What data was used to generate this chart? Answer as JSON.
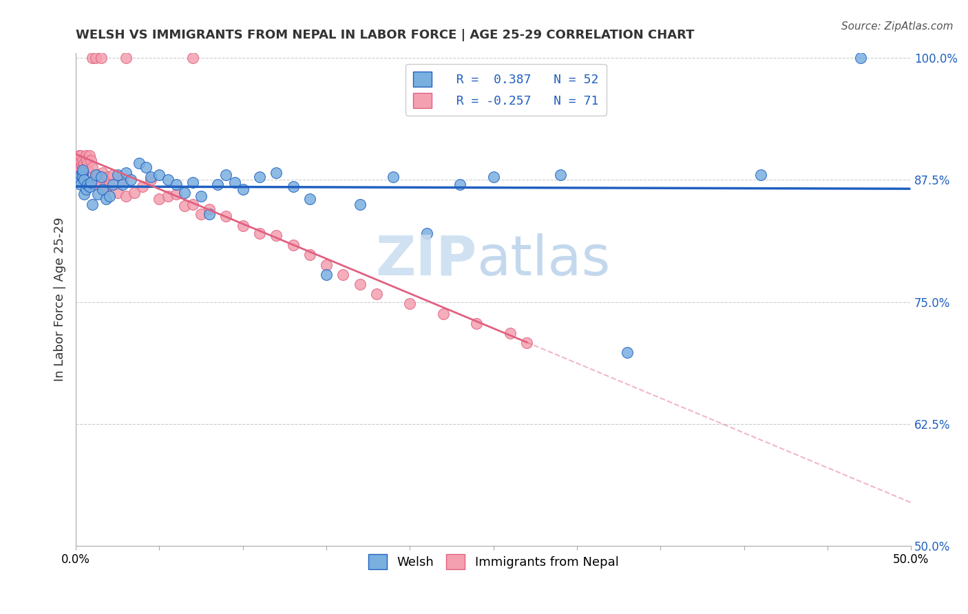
{
  "title": "WELSH VS IMMIGRANTS FROM NEPAL IN LABOR FORCE | AGE 25-29 CORRELATION CHART",
  "source_text": "Source: ZipAtlas.com",
  "ylabel": "In Labor Force | Age 25-29",
  "xlim": [
    0.0,
    0.5
  ],
  "ylim": [
    0.5,
    1.005
  ],
  "yticks": [
    0.5,
    0.625,
    0.75,
    0.875,
    1.0
  ],
  "ytick_labels": [
    "50.0%",
    "62.5%",
    "75.0%",
    "87.5%",
    "100.0%"
  ],
  "xticks": [
    0.0,
    0.05,
    0.1,
    0.15,
    0.2,
    0.25,
    0.3,
    0.35,
    0.4,
    0.45,
    0.5
  ],
  "xtick_labels": [
    "0.0%",
    "",
    "",
    "",
    "",
    "",
    "",
    "",
    "",
    "",
    "50.0%"
  ],
  "welsh_R": 0.387,
  "welsh_N": 52,
  "nepal_R": -0.257,
  "nepal_N": 71,
  "welsh_color": "#7ab0e0",
  "nepal_color": "#f4a0b0",
  "welsh_line_color": "#2060c0",
  "nepal_line_color": "#e06080",
  "background_color": "#ffffff",
  "welsh_x": [
    0.002,
    0.003,
    0.003,
    0.004,
    0.004,
    0.004,
    0.005,
    0.005,
    0.006,
    0.007,
    0.008,
    0.009,
    0.01,
    0.012,
    0.013,
    0.015,
    0.016,
    0.018,
    0.02,
    0.022,
    0.025,
    0.028,
    0.03,
    0.033,
    0.038,
    0.042,
    0.045,
    0.05,
    0.055,
    0.06,
    0.065,
    0.07,
    0.075,
    0.08,
    0.085,
    0.09,
    0.095,
    0.1,
    0.11,
    0.12,
    0.13,
    0.14,
    0.15,
    0.17,
    0.19,
    0.21,
    0.23,
    0.25,
    0.29,
    0.33,
    0.41,
    0.47
  ],
  "welsh_y": [
    0.875,
    0.88,
    0.87,
    0.882,
    0.878,
    0.885,
    0.86,
    0.875,
    0.865,
    0.87,
    0.868,
    0.872,
    0.85,
    0.88,
    0.86,
    0.878,
    0.865,
    0.855,
    0.858,
    0.87,
    0.88,
    0.87,
    0.882,
    0.875,
    0.892,
    0.888,
    0.878,
    0.88,
    0.875,
    0.87,
    0.862,
    0.872,
    0.858,
    0.84,
    0.87,
    0.88,
    0.872,
    0.865,
    0.878,
    0.882,
    0.868,
    0.855,
    0.778,
    0.85,
    0.878,
    0.82,
    0.87,
    0.878,
    0.88,
    0.698,
    0.88,
    1.0
  ],
  "nepal_x": [
    0.001,
    0.001,
    0.001,
    0.002,
    0.002,
    0.002,
    0.002,
    0.003,
    0.003,
    0.003,
    0.003,
    0.003,
    0.004,
    0.004,
    0.004,
    0.004,
    0.005,
    0.005,
    0.005,
    0.006,
    0.006,
    0.007,
    0.007,
    0.007,
    0.008,
    0.008,
    0.009,
    0.01,
    0.011,
    0.012,
    0.013,
    0.014,
    0.015,
    0.016,
    0.018,
    0.019,
    0.02,
    0.022,
    0.025,
    0.028,
    0.03,
    0.035,
    0.04,
    0.045,
    0.05,
    0.055,
    0.06,
    0.065,
    0.07,
    0.075,
    0.08,
    0.09,
    0.1,
    0.11,
    0.12,
    0.13,
    0.14,
    0.15,
    0.16,
    0.17,
    0.18,
    0.2,
    0.22,
    0.24,
    0.26,
    0.27,
    0.01,
    0.012,
    0.015,
    0.03,
    0.07
  ],
  "nepal_y": [
    0.88,
    0.875,
    0.895,
    0.882,
    0.89,
    0.878,
    0.9,
    0.888,
    0.885,
    0.895,
    0.878,
    0.9,
    0.882,
    0.895,
    0.875,
    0.888,
    0.892,
    0.878,
    0.882,
    0.9,
    0.895,
    0.878,
    0.888,
    0.892,
    0.9,
    0.882,
    0.895,
    0.888,
    0.875,
    0.87,
    0.88,
    0.875,
    0.87,
    0.882,
    0.865,
    0.878,
    0.87,
    0.88,
    0.862,
    0.875,
    0.858,
    0.862,
    0.868,
    0.875,
    0.855,
    0.858,
    0.86,
    0.848,
    0.85,
    0.84,
    0.845,
    0.838,
    0.828,
    0.82,
    0.818,
    0.808,
    0.798,
    0.788,
    0.778,
    0.768,
    0.758,
    0.748,
    0.738,
    0.728,
    0.718,
    0.708,
    1.0,
    1.0,
    1.0,
    1.0,
    1.0
  ]
}
